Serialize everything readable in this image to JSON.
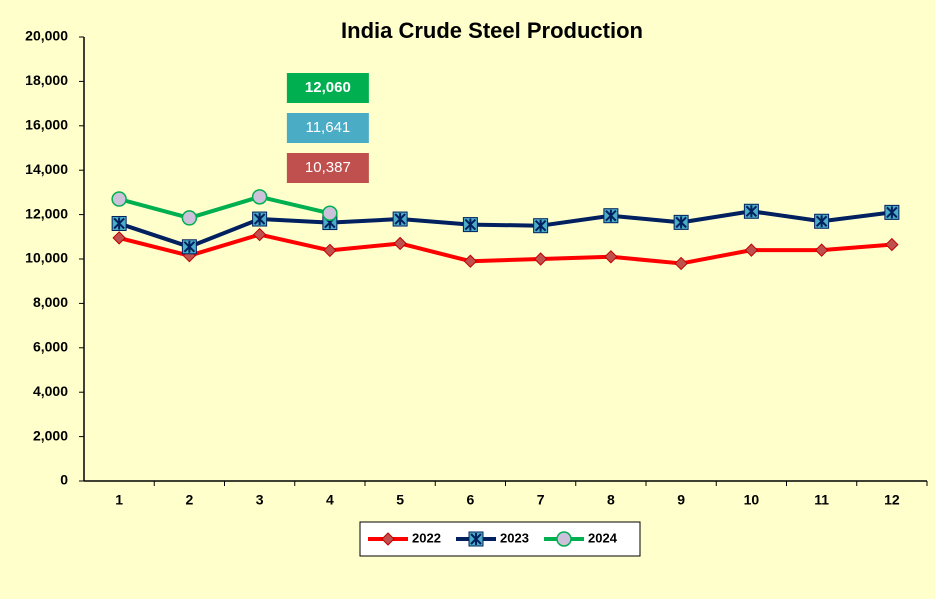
{
  "chart_data": {
    "type": "line",
    "title": "India Crude Steel Production",
    "categories": [
      "1",
      "2",
      "3",
      "4",
      "5",
      "6",
      "7",
      "8",
      "9",
      "10",
      "11",
      "12"
    ],
    "series": [
      {
        "name": "2022",
        "color": "#ff0000",
        "marker": "diamond",
        "marker_color": "#c0504d",
        "label_color": "#c0504d",
        "values": [
          10950,
          10150,
          11100,
          10387,
          10700,
          9900,
          10000,
          10100,
          9800,
          10400,
          10400,
          10650
        ],
        "value_labels": [
          null,
          null,
          null,
          "10,387",
          null,
          null,
          null,
          null,
          null,
          null,
          null,
          null
        ]
      },
      {
        "name": "2023",
        "color": "#002060",
        "marker": "square-x",
        "marker_color": "#4bacc6",
        "label_color": "#4bacc6",
        "values": [
          11600,
          10550,
          11800,
          11641,
          11800,
          11550,
          11500,
          11950,
          11650,
          12150,
          11700,
          12100
        ],
        "value_labels": [
          null,
          null,
          null,
          "11,641",
          null,
          null,
          null,
          null,
          null,
          null,
          null,
          null
        ]
      },
      {
        "name": "2024",
        "color": "#00b050",
        "marker": "circle",
        "marker_color": "#ccc0da",
        "label_color": "#00b050",
        "values": [
          12700,
          11850,
          12800,
          12060,
          null,
          null,
          null,
          null,
          null,
          null,
          null,
          null
        ],
        "value_labels": [
          null,
          null,
          null,
          "12,060",
          null,
          null,
          null,
          null,
          null,
          null,
          null,
          null
        ]
      }
    ],
    "ylim": [
      0,
      20000
    ],
    "yticks": [
      {
        "value": 0,
        "label": "0"
      },
      {
        "value": 2000,
        "label": "2,000"
      },
      {
        "value": 4000,
        "label": "4,000"
      },
      {
        "value": 6000,
        "label": "6,000"
      },
      {
        "value": 8000,
        "label": "8,000"
      },
      {
        "value": 10000,
        "label": "10,000"
      },
      {
        "value": 12000,
        "label": "12,000"
      },
      {
        "value": 14000,
        "label": "14,000"
      },
      {
        "value": 16000,
        "label": "16,000"
      },
      {
        "value": 18000,
        "label": "18,000"
      },
      {
        "value": 20000,
        "label": "20,000"
      }
    ],
    "grid": false,
    "legend": "bottom"
  }
}
